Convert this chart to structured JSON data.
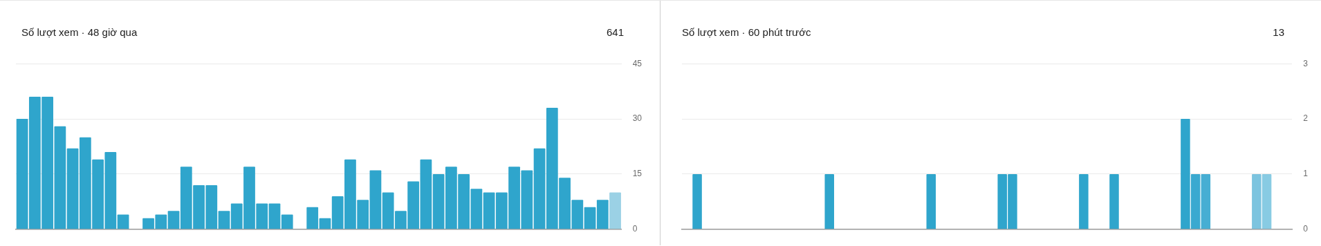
{
  "chart_data": [
    {
      "type": "bar",
      "title": "Số lượt xem · 48 giờ qua",
      "annotations": [
        "641"
      ],
      "categories": [
        null,
        null,
        null,
        null,
        null,
        null,
        null,
        null,
        null,
        null,
        null,
        null,
        null,
        null,
        null,
        null,
        null,
        null,
        null,
        null,
        null,
        null,
        null,
        null,
        null,
        null,
        null,
        null,
        null,
        null,
        null,
        null,
        null,
        null,
        null,
        null,
        null,
        null,
        null,
        null,
        null,
        null,
        null,
        null,
        null,
        null,
        null,
        null
      ],
      "values": [
        30,
        36,
        36,
        28,
        22,
        25,
        19,
        21,
        4,
        0,
        3,
        4,
        5,
        17,
        12,
        12,
        5,
        7,
        17,
        7,
        7,
        4,
        0,
        6,
        3,
        9,
        19,
        8,
        16,
        10,
        5,
        13,
        19,
        15,
        17,
        15,
        11,
        10,
        10,
        17,
        16,
        22,
        33,
        14,
        8,
        6,
        8,
        10
      ],
      "colors": [
        "#2fa5cc",
        "#2fa5cc",
        "#2fa5cc",
        "#2fa5cc",
        "#2fa5cc",
        "#2fa5cc",
        "#2fa5cc",
        "#2fa5cc",
        "#2fa5cc",
        "#2fa5cc",
        "#2fa5cc",
        "#2fa5cc",
        "#2fa5cc",
        "#2fa5cc",
        "#2fa5cc",
        "#2fa5cc",
        "#2fa5cc",
        "#2fa5cc",
        "#2fa5cc",
        "#2fa5cc",
        "#2fa5cc",
        "#2fa5cc",
        "#2fa5cc",
        "#2fa5cc",
        "#2fa5cc",
        "#2fa5cc",
        "#2fa5cc",
        "#2fa5cc",
        "#2fa5cc",
        "#2fa5cc",
        "#2fa5cc",
        "#2fa5cc",
        "#2fa5cc",
        "#2fa5cc",
        "#2fa5cc",
        "#2fa5cc",
        "#2fa5cc",
        "#2fa5cc",
        "#2fa5cc",
        "#2fa5cc",
        "#2fa5cc",
        "#2fa5cc",
        "#2fa5cc",
        "#2fa5cc",
        "#2fa5cc",
        "#2fa5cc",
        "#2fa5cc",
        "#9bd1e5"
      ],
      "ylim": [
        0,
        45
      ],
      "yticks": [
        0,
        15,
        30,
        45
      ],
      "grid": "y",
      "tick_labels": "y"
    },
    {
      "type": "bar",
      "title": "Số lượt xem · 60 phút trước",
      "annotations": [
        "13"
      ],
      "categories": [
        null,
        null,
        null,
        null,
        null,
        null,
        null,
        null,
        null,
        null,
        null,
        null,
        null,
        null,
        null,
        null,
        null,
        null,
        null,
        null,
        null,
        null,
        null,
        null,
        null,
        null,
        null,
        null,
        null,
        null,
        null,
        null,
        null,
        null,
        null,
        null,
        null,
        null,
        null,
        null,
        null,
        null,
        null,
        null,
        null,
        null,
        null,
        null,
        null,
        null,
        null,
        null,
        null,
        null,
        null,
        null,
        null,
        null,
        null,
        null
      ],
      "values": [
        0,
        1,
        0,
        0,
        0,
        0,
        0,
        0,
        0,
        0,
        0,
        0,
        0,
        0,
        1,
        0,
        0,
        0,
        0,
        0,
        0,
        0,
        0,
        0,
        1,
        0,
        0,
        0,
        0,
        0,
        0,
        1,
        1,
        0,
        0,
        0,
        0,
        0,
        0,
        1,
        0,
        0,
        1,
        0,
        0,
        0,
        0,
        0,
        0,
        2,
        1,
        1,
        0,
        0,
        0,
        0,
        1,
        1,
        0,
        0
      ],
      "colors": [
        "#2fa5cc",
        "#2fa5cc",
        "#2fa5cc",
        "#2fa5cc",
        "#2fa5cc",
        "#2fa5cc",
        "#2fa5cc",
        "#2fa5cc",
        "#2fa5cc",
        "#2fa5cc",
        "#2fa5cc",
        "#2fa5cc",
        "#2fa5cc",
        "#2fa5cc",
        "#2fa5cc",
        "#2fa5cc",
        "#2fa5cc",
        "#2fa5cc",
        "#2fa5cc",
        "#2fa5cc",
        "#2fa5cc",
        "#2fa5cc",
        "#2fa5cc",
        "#2fa5cc",
        "#2fa5cc",
        "#2fa5cc",
        "#2fa5cc",
        "#2fa5cc",
        "#2fa5cc",
        "#2fa5cc",
        "#2fa5cc",
        "#2fa5cc",
        "#2fa5cc",
        "#2fa5cc",
        "#2fa5cc",
        "#2fa5cc",
        "#2fa5cc",
        "#2fa5cc",
        "#2fa5cc",
        "#2fa5cc",
        "#2fa5cc",
        "#2fa5cc",
        "#2fa5cc",
        "#2fa5cc",
        "#2fa5cc",
        "#2fa5cc",
        "#2fa5cc",
        "#2fa5cc",
        "#2fa5cc",
        "#2fa5cc",
        "#3aa9d0",
        "#46aed3",
        "#5bb7d8",
        "#66bcdb",
        "#71c0dd",
        "#77c2de",
        "#7cc4df",
        "#88cbe3",
        "#8fcee4",
        "#96d0e5"
      ],
      "ylim": [
        0,
        3
      ],
      "yticks": [
        0,
        1,
        2,
        3
      ],
      "grid": "y",
      "tick_labels": "y"
    }
  ]
}
